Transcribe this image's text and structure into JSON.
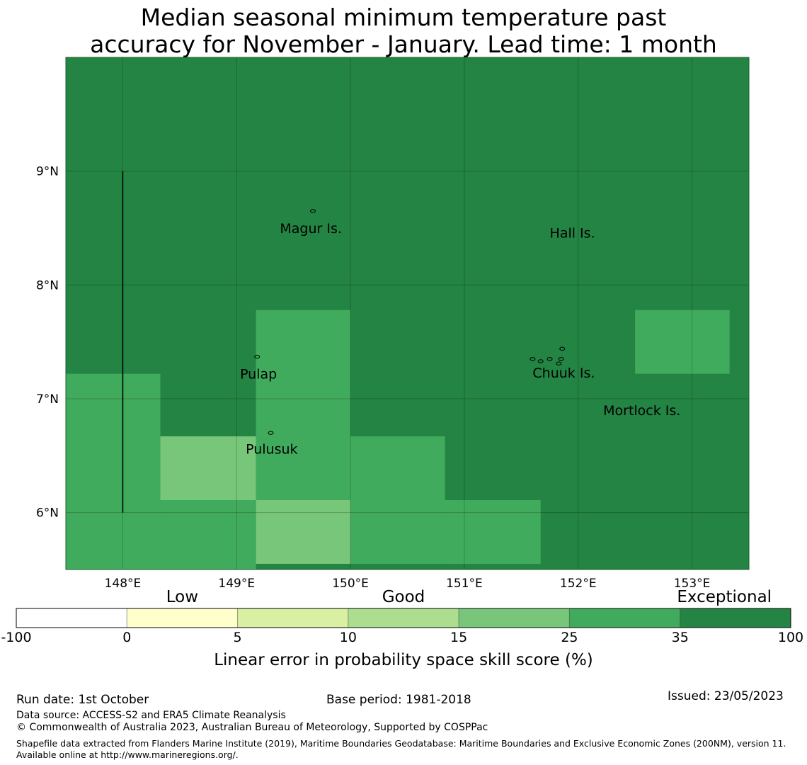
{
  "title": {
    "line1": "Median seasonal minimum temperature past",
    "line2": "accuracy for November - January. Lead time: 1 month"
  },
  "map": {
    "lon_range": [
      147.5,
      153.5
    ],
    "lat_range": [
      5.5,
      10.0
    ],
    "x_ticks": [
      {
        "value": 148,
        "label": "148°E"
      },
      {
        "value": 149,
        "label": "149°E"
      },
      {
        "value": 150,
        "label": "150°E"
      },
      {
        "value": 151,
        "label": "151°E"
      },
      {
        "value": 152,
        "label": "152°E"
      },
      {
        "value": 153,
        "label": "153°E"
      }
    ],
    "y_ticks": [
      {
        "value": 9,
        "label": "9°N"
      },
      {
        "value": 8,
        "label": "8°N"
      },
      {
        "value": 7,
        "label": "7°N"
      },
      {
        "value": 6,
        "label": "6°N"
      }
    ],
    "background_class": "exceptional",
    "cells": [
      {
        "lon": [
          147.5,
          148.33
        ],
        "lat": [
          5.5,
          7.22
        ],
        "class": "c25_35"
      },
      {
        "lon": [
          148.33,
          149.17
        ],
        "lat": [
          5.5,
          6.11
        ],
        "class": "c25_35"
      },
      {
        "lon": [
          148.33,
          149.17
        ],
        "lat": [
          6.11,
          6.67
        ],
        "class": "c15_25"
      },
      {
        "lon": [
          149.17,
          150.0
        ],
        "lat": [
          6.11,
          7.78
        ],
        "class": "c25_35"
      },
      {
        "lon": [
          149.17,
          150.0
        ],
        "lat": [
          5.55,
          6.11
        ],
        "class": "c15_25"
      },
      {
        "lon": [
          150.0,
          150.83
        ],
        "lat": [
          5.55,
          6.67
        ],
        "class": "c25_35"
      },
      {
        "lon": [
          150.83,
          151.67
        ],
        "lat": [
          5.55,
          6.11
        ],
        "class": "c25_35"
      },
      {
        "lon": [
          152.5,
          153.33
        ],
        "lat": [
          7.22,
          7.78
        ],
        "class": "c25_35"
      }
    ],
    "boundary_line": {
      "lon": 148.0,
      "lat": [
        6.0,
        9.0
      ]
    },
    "places": [
      {
        "name": "Magur Is.",
        "lon": 149.38,
        "lat": 8.5
      },
      {
        "name": "Hall Is.",
        "lon": 151.75,
        "lat": 8.46
      },
      {
        "name": "Pulap",
        "lon": 149.03,
        "lat": 7.22
      },
      {
        "name": "Chuuk Is.",
        "lon": 151.6,
        "lat": 7.23
      },
      {
        "name": "Mortlock Is.",
        "lon": 152.22,
        "lat": 6.9
      },
      {
        "name": "Pulusuk",
        "lon": 149.08,
        "lat": 6.56
      }
    ],
    "islands": [
      {
        "lon": 149.67,
        "lat": 8.65
      },
      {
        "lon": 149.18,
        "lat": 7.37
      },
      {
        "lon": 149.3,
        "lat": 6.7
      },
      {
        "lon": 151.6,
        "lat": 7.35
      },
      {
        "lon": 151.67,
        "lat": 7.33
      },
      {
        "lon": 151.75,
        "lat": 7.35
      },
      {
        "lon": 151.85,
        "lat": 7.35
      },
      {
        "lon": 151.86,
        "lat": 7.44
      },
      {
        "lon": 151.83,
        "lat": 7.31
      }
    ]
  },
  "colorbar": {
    "categories": [
      {
        "label": "Low",
        "position": 1.5
      },
      {
        "label": "Good",
        "position": 3.5
      },
      {
        "label": "Exceptional",
        "position": 6.4
      }
    ],
    "bins": [
      {
        "class": "neg",
        "color": "#ffffff"
      },
      {
        "class": "c0_5",
        "color": "#ffffcc"
      },
      {
        "class": "c5_10",
        "color": "#d9f0a3"
      },
      {
        "class": "c10_15",
        "color": "#addd8e"
      },
      {
        "class": "c15_25",
        "color": "#78c679"
      },
      {
        "class": "c25_35",
        "color": "#41ab5d"
      },
      {
        "class": "exceptional",
        "color": "#238443"
      }
    ],
    "ticks": [
      "-100",
      "0",
      "5",
      "10",
      "15",
      "25",
      "35",
      "100"
    ],
    "label": "Linear error in probability space skill score (%)"
  },
  "footer": {
    "run_date": "Run date: 1st October",
    "base_period": "Base period: 1981-2018",
    "issued": "Issued: 23/05/2023",
    "data_source": "Data source: ACCESS-S2 and ERA5 Climate Reanalysis",
    "copyright": "© Commonwealth of Australia 2023, Australian Bureau of Meteorology, Supported by COSPPac",
    "shapefile": "Shapefile data extracted from Flanders Marine Institute (2019), Maritime Boundaries Geodatabase: Maritime Boundaries and Exclusive Economic Zones (200NM), version 11. Available online at http://www.marineregions.org/."
  }
}
